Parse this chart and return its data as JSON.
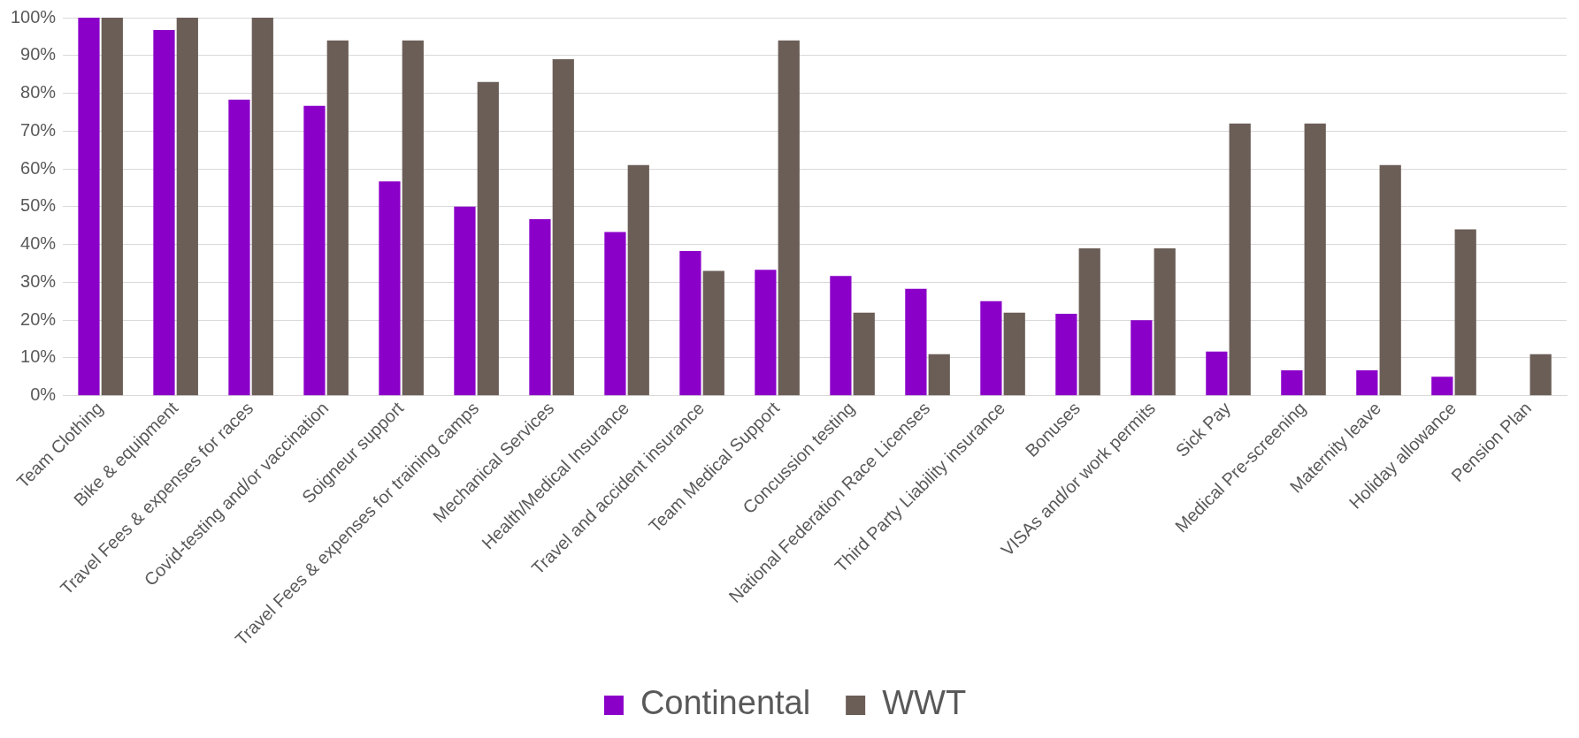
{
  "chart_data": {
    "type": "bar",
    "categories": [
      "Team Clothing",
      "Bike & equipment",
      "Travel Fees & expenses for races",
      "Covid-testing and/or vaccination",
      "Soigneur support",
      "Travel Fees & expenses for training camps",
      "Mechanical Services",
      "Health/Medical Insurance",
      "Travel and accident insurance",
      "Team Medical Support",
      "Concussion testing",
      "National Federation Race Licenses",
      "Third Party Liability insurance",
      "Bonuses",
      "VISAs and/or work permits",
      "Sick Pay",
      "Medical Pre-screening",
      "Maternity leave",
      "Holiday allowance",
      "Pension Plan"
    ],
    "series": [
      {
        "name": "Continental",
        "color": "#8b00c9",
        "values": [
          100,
          96.7,
          78.3,
          76.7,
          56.7,
          50,
          46.7,
          43.3,
          38.3,
          33.3,
          31.7,
          28.3,
          25,
          21.7,
          20,
          11.7,
          6.7,
          6.7,
          5,
          0
        ]
      },
      {
        "name": "WWT",
        "color": "#6b5e57",
        "values": [
          100,
          100,
          100,
          94,
          94,
          83,
          89,
          61,
          33,
          94,
          22,
          11,
          22,
          39,
          39,
          72,
          72,
          61,
          44,
          11
        ]
      }
    ],
    "ylim": [
      0,
      100
    ],
    "yticks": [
      {
        "value": 0,
        "label": "0%"
      },
      {
        "value": 10,
        "label": "10%"
      },
      {
        "value": 20,
        "label": "20%"
      },
      {
        "value": 30,
        "label": "30%"
      },
      {
        "value": 40,
        "label": "40%"
      },
      {
        "value": 50,
        "label": "50%"
      },
      {
        "value": 60,
        "label": "60%"
      },
      {
        "value": 70,
        "label": "70%"
      },
      {
        "value": 80,
        "label": "80%"
      },
      {
        "value": 90,
        "label": "90%"
      },
      {
        "value": 100,
        "label": "100%"
      }
    ],
    "grid": "y",
    "legend": "bottom"
  }
}
